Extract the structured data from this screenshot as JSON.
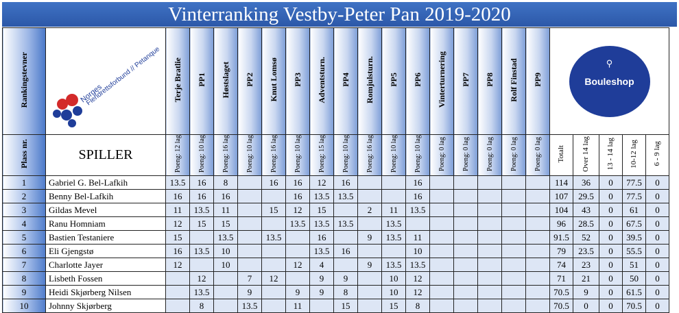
{
  "title": "Vinterranking Vestby-Peter Pan 2019-2020",
  "header": {
    "rankingstevner": "Rankingstevner",
    "plass": "Plass nr.",
    "spiller": "SPILLER",
    "logo_text": "Norges Fleridrettsforbund // Petanque",
    "sponsor": "Bouleshop",
    "events": [
      "Terje Bratlie",
      "PP1",
      "Høstslaget",
      "PP2",
      "Knut Lomsø",
      "PP3",
      "Adventsturn.",
      "PP4",
      "Romjulsturn.",
      "PP5",
      "PP6",
      "Vinterturnering",
      "PP7",
      "PP8",
      "Rolf Finstad",
      "PP9"
    ],
    "points": [
      "Poeng: 12 lag",
      "Poeng: 10 lag",
      "Poeng: 16 lag",
      "Poeng: 10 lag",
      "Poeng: 16 lag",
      "Poeng: 10 lag",
      "Poeng: 15 lag",
      "Poeng: 10 lag",
      "Poeng: 16 lag",
      "Poeng: 10 lag",
      "Poeng: 10 lag",
      "Poeng: 0 lag",
      "Poeng: 0 lag",
      "Poeng: 0 lag",
      "Poeng: 0 lag",
      "Poeng: 0 lag"
    ],
    "summary": [
      "Totalt",
      "Over 14 lag",
      "13 - 14 lag",
      "10-12 lag",
      "6 - 9 lag"
    ]
  },
  "rows": [
    {
      "plass": "1",
      "name": "Gabriel G. Bel-Lafkih",
      "scores": [
        "13.5",
        "16",
        "8",
        "",
        "16",
        "16",
        "12",
        "16",
        "",
        "",
        "16",
        "",
        "",
        "",
        "",
        ""
      ],
      "sum": [
        "114",
        "36",
        "0",
        "77.5",
        "0"
      ]
    },
    {
      "plass": "2",
      "name": "Benny Bel-Lafkih",
      "scores": [
        "16",
        "16",
        "16",
        "",
        "",
        "16",
        "13.5",
        "13.5",
        "",
        "",
        "16",
        "",
        "",
        "",
        "",
        ""
      ],
      "sum": [
        "107",
        "29.5",
        "0",
        "77.5",
        "0"
      ]
    },
    {
      "plass": "3",
      "name": "Gildas Mevel",
      "scores": [
        "11",
        "13.5",
        "11",
        "",
        "15",
        "12",
        "15",
        "",
        "2",
        "11",
        "13.5",
        "",
        "",
        "",
        "",
        ""
      ],
      "sum": [
        "104",
        "43",
        "0",
        "61",
        "0"
      ]
    },
    {
      "plass": "4",
      "name": "Ranu Homniam",
      "scores": [
        "12",
        "15",
        "15",
        "",
        "",
        "13.5",
        "13.5",
        "13.5",
        "",
        "13.5",
        "",
        "",
        "",
        "",
        "",
        ""
      ],
      "sum": [
        "96",
        "28.5",
        "0",
        "67.5",
        "0"
      ]
    },
    {
      "plass": "5",
      "name": "Bastien Testaniere",
      "scores": [
        "15",
        "",
        "13.5",
        "",
        "13.5",
        "",
        "16",
        "",
        "9",
        "13.5",
        "11",
        "",
        "",
        "",
        "",
        ""
      ],
      "sum": [
        "91.5",
        "52",
        "0",
        "39.5",
        "0"
      ]
    },
    {
      "plass": "6",
      "name": "Eli Gjengstø",
      "scores": [
        "16",
        "13.5",
        "10",
        "",
        "",
        "",
        "13.5",
        "16",
        "",
        "",
        "10",
        "",
        "",
        "",
        "",
        ""
      ],
      "sum": [
        "79",
        "23.5",
        "0",
        "55.5",
        "0"
      ]
    },
    {
      "plass": "7",
      "name": "Charlotte Jayer",
      "scores": [
        "12",
        "",
        "10",
        "",
        "",
        "12",
        "4",
        "",
        "9",
        "13.5",
        "13.5",
        "",
        "",
        "",
        "",
        ""
      ],
      "sum": [
        "74",
        "23",
        "0",
        "51",
        "0"
      ]
    },
    {
      "plass": "8",
      "name": "Lisbeth Fossen",
      "scores": [
        "",
        "12",
        "",
        "7",
        "12",
        "",
        "9",
        "9",
        "",
        "10",
        "12",
        "",
        "",
        "",
        "",
        ""
      ],
      "sum": [
        "71",
        "21",
        "0",
        "50",
        "0"
      ]
    },
    {
      "plass": "9",
      "name": "Heidi Skjørberg Nilsen",
      "scores": [
        "",
        "13.5",
        "",
        "9",
        "",
        "9",
        "9",
        "8",
        "",
        "10",
        "12",
        "",
        "",
        "",
        "",
        ""
      ],
      "sum": [
        "70.5",
        "9",
        "0",
        "61.5",
        "0"
      ]
    },
    {
      "plass": "10",
      "name": "Johnny Skjørberg",
      "scores": [
        "",
        "8",
        "",
        "13.5",
        "",
        "11",
        "",
        "15",
        "",
        "15",
        "8",
        "",
        "",
        "",
        "",
        ""
      ],
      "sum": [
        "70.5",
        "0",
        "0",
        "70.5",
        "0"
      ]
    }
  ]
}
